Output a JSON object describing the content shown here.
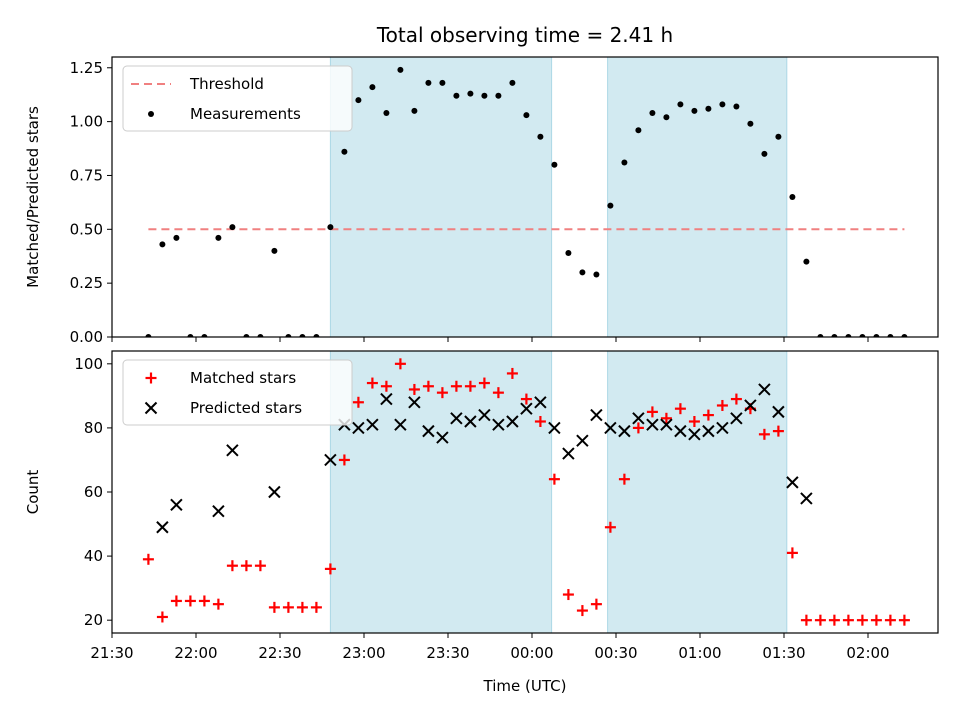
{
  "chart_data": {
    "title": "Total observing time = 2.41 h",
    "xlabel": "Time (UTC)",
    "x_ticks": [
      "21:30",
      "22:00",
      "22:30",
      "23:00",
      "23:30",
      "00:00",
      "00:30",
      "01:00",
      "01:30",
      "02:00"
    ],
    "x_tick_minutes": [
      0,
      30,
      60,
      90,
      120,
      150,
      180,
      210,
      240,
      270
    ],
    "x_range_minutes": [
      0,
      295
    ],
    "highlight_spans_minutes": [
      [
        78,
        157
      ],
      [
        177,
        241
      ]
    ],
    "highlight_color": "#add8e6",
    "panels": [
      {
        "type": "scatter",
        "ylabel": "Matched/Predicted stars",
        "ylim": [
          0,
          1.3
        ],
        "y_ticks": [
          0.0,
          0.25,
          0.5,
          0.75,
          1.0,
          1.25
        ],
        "y_tick_labels": [
          "0.00",
          "0.25",
          "0.50",
          "0.75",
          "1.00",
          "1.25"
        ],
        "legend": {
          "position": "top-left",
          "entries": [
            "Threshold",
            "Measurements"
          ]
        },
        "threshold": {
          "name": "Threshold",
          "value": 0.5,
          "x_start": 13,
          "x_end": 283,
          "color": "#f08080"
        },
        "series": [
          {
            "name": "Measurements",
            "marker": "dot",
            "color": "#000000",
            "x": [
              13,
              18,
              23,
              28,
              33,
              38,
              43,
              48,
              53,
              58,
              63,
              68,
              73,
              78,
              83,
              88,
              93,
              98,
              103,
              108,
              113,
              118,
              123,
              128,
              133,
              138,
              143,
              148,
              153,
              158,
              163,
              168,
              173,
              178,
              183,
              188,
              193,
              198,
              203,
              208,
              213,
              218,
              223,
              228,
              233,
              238,
              243,
              248,
              253,
              258,
              263,
              268,
              273,
              278,
              283
            ],
            "y": [
              0.0,
              0.43,
              0.46,
              0.0,
              0.0,
              0.46,
              0.51,
              0.0,
              0.0,
              0.4,
              0.0,
              0.0,
              0.0,
              0.51,
              0.86,
              1.1,
              1.16,
              1.04,
              1.24,
              1.05,
              1.18,
              1.18,
              1.12,
              1.13,
              1.12,
              1.12,
              1.18,
              1.03,
              0.93,
              0.8,
              0.39,
              0.3,
              0.29,
              0.61,
              0.81,
              0.96,
              1.04,
              1.02,
              1.08,
              1.05,
              1.06,
              1.08,
              1.07,
              0.99,
              0.85,
              0.93,
              0.65,
              0.35,
              0.0,
              0.0,
              0.0,
              0.0,
              0.0,
              0.0,
              0.0
            ]
          }
        ]
      },
      {
        "type": "scatter",
        "ylabel": "Count",
        "ylim": [
          16,
          104
        ],
        "y_ticks": [
          20,
          40,
          60,
          80,
          100
        ],
        "y_tick_labels": [
          "20",
          "40",
          "60",
          "80",
          "100"
        ],
        "legend": {
          "position": "top-left",
          "entries": [
            "Matched stars",
            "Predicted stars"
          ]
        },
        "series": [
          {
            "name": "Matched stars",
            "marker": "plus",
            "color": "#ff0000",
            "x": [
              13,
              18,
              23,
              28,
              33,
              38,
              43,
              48,
              53,
              58,
              63,
              68,
              73,
              78,
              83,
              88,
              93,
              98,
              103,
              108,
              113,
              118,
              123,
              128,
              133,
              138,
              143,
              148,
              153,
              158,
              163,
              168,
              173,
              178,
              183,
              188,
              193,
              198,
              203,
              208,
              213,
              218,
              223,
              228,
              233,
              238,
              243,
              248,
              253,
              258,
              263,
              268,
              273,
              278,
              283
            ],
            "y": [
              39,
              21,
              26,
              26,
              26,
              25,
              37,
              37,
              37,
              24,
              24,
              24,
              24,
              36,
              70,
              88,
              94,
              93,
              100,
              92,
              93,
              91,
              93,
              93,
              94,
              91,
              97,
              89,
              82,
              64,
              28,
              23,
              25,
              49,
              64,
              80,
              85,
              83,
              86,
              82,
              84,
              87,
              89,
              86,
              78,
              79,
              41,
              20,
              20,
              20,
              20,
              20,
              20,
              20,
              20
            ]
          },
          {
            "name": "Predicted stars",
            "marker": "x",
            "color": "#000000",
            "x": [
              18,
              23,
              38,
              43,
              58,
              78,
              83,
              88,
              93,
              98,
              103,
              108,
              113,
              118,
              123,
              128,
              133,
              138,
              143,
              148,
              153,
              158,
              163,
              168,
              173,
              178,
              183,
              188,
              193,
              198,
              203,
              208,
              213,
              218,
              223,
              228,
              233,
              238,
              243,
              248
            ],
            "y": [
              49,
              56,
              54,
              73,
              60,
              70,
              81,
              80,
              81,
              89,
              81,
              88,
              79,
              77,
              83,
              82,
              84,
              81,
              82,
              86,
              88,
              80,
              72,
              76,
              84,
              80,
              79,
              83,
              81,
              81,
              79,
              78,
              79,
              80,
              83,
              87,
              92,
              85,
              63,
              58
            ]
          }
        ]
      }
    ]
  }
}
